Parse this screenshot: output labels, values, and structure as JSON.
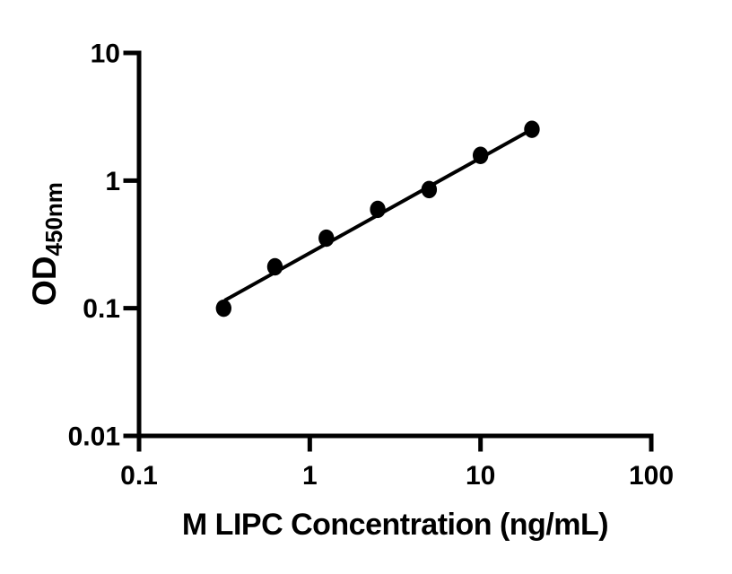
{
  "figure": {
    "background_color": "#ffffff",
    "axis_color": "#000000",
    "marker_color": "#000000",
    "line_color": "#000000"
  },
  "chart_data": {
    "type": "scatter",
    "title": "",
    "xlabel": "M LIPC Concentration (ng/mL)",
    "ylabel_main": "OD",
    "ylabel_sub": "450nm",
    "x_scale": "log",
    "y_scale": "log",
    "xlim": [
      0.1,
      100
    ],
    "ylim": [
      0.01,
      10
    ],
    "grid": false,
    "legend": null,
    "x_ticks": [
      {
        "value": 0.1,
        "label": "0.1"
      },
      {
        "value": 1,
        "label": "1"
      },
      {
        "value": 10,
        "label": "10"
      },
      {
        "value": 100,
        "label": "100"
      }
    ],
    "y_ticks": [
      {
        "value": 0.01,
        "label": "0.01"
      },
      {
        "value": 0.1,
        "label": "0.1"
      },
      {
        "value": 1,
        "label": "1"
      },
      {
        "value": 10,
        "label": "10"
      }
    ],
    "points": [
      {
        "x": 0.313,
        "y": 0.1
      },
      {
        "x": 0.625,
        "y": 0.211
      },
      {
        "x": 1.25,
        "y": 0.354
      },
      {
        "x": 2.5,
        "y": 0.595
      },
      {
        "x": 5,
        "y": 0.85
      },
      {
        "x": 10,
        "y": 1.575
      },
      {
        "x": 20,
        "y": 2.52
      }
    ],
    "trend_line": {
      "x1": 0.317,
      "y1": 0.115,
      "x2": 20,
      "y2": 2.52
    }
  }
}
